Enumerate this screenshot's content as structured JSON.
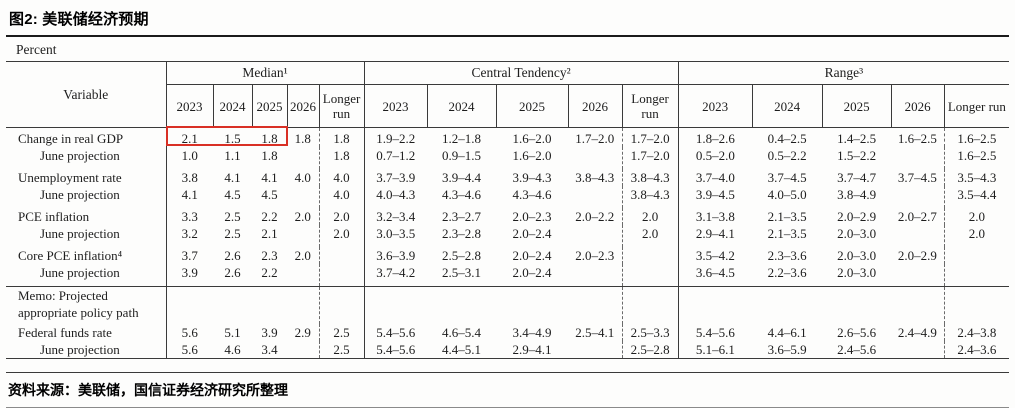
{
  "page": {
    "title": "图2: 美联储经济预期",
    "unit_label": "Percent",
    "source": "资料来源：美联储，国信证券经济研究所整理",
    "highlight_color": "#d93025"
  },
  "table": {
    "variable_header": "Variable",
    "groups": [
      {
        "label": "Median¹",
        "years": [
          "2023",
          "2024",
          "2025",
          "2026",
          "Longer run"
        ]
      },
      {
        "label": "Central Tendency²",
        "years": [
          "2023",
          "2024",
          "2025",
          "2026",
          "Longer run"
        ]
      },
      {
        "label": "Range³",
        "years": [
          "2023",
          "2024",
          "2025",
          "2026",
          "Longer run"
        ]
      }
    ],
    "rows": [
      {
        "type": "data",
        "label": "Change in real GDP",
        "indent": false,
        "highlight": true,
        "median": [
          "2.1",
          "1.5",
          "1.8",
          "1.8",
          "1.8"
        ],
        "central_tendency": [
          "1.9–2.2",
          "1.2–1.8",
          "1.6–2.0",
          "1.7–2.0",
          "1.7–2.0"
        ],
        "range": [
          "1.8–2.6",
          "0.4–2.5",
          "1.4–2.5",
          "1.6–2.5",
          "1.6–2.5"
        ]
      },
      {
        "type": "data",
        "label": "June projection",
        "indent": true,
        "spacer_after": true,
        "median": [
          "1.0",
          "1.1",
          "1.8",
          "",
          "1.8"
        ],
        "central_tendency": [
          "0.7–1.2",
          "0.9–1.5",
          "1.6–2.0",
          "",
          "1.7–2.0"
        ],
        "range": [
          "0.5–2.0",
          "0.5–2.2",
          "1.5–2.2",
          "",
          "1.6–2.5"
        ]
      },
      {
        "type": "data",
        "label": "Unemployment rate",
        "indent": false,
        "median": [
          "3.8",
          "4.1",
          "4.1",
          "4.0",
          "4.0"
        ],
        "central_tendency": [
          "3.7–3.9",
          "3.9–4.4",
          "3.9–4.3",
          "3.8–4.3",
          "3.8–4.3"
        ],
        "range": [
          "3.7–4.0",
          "3.7–4.5",
          "3.7–4.7",
          "3.7–4.5",
          "3.5–4.3"
        ]
      },
      {
        "type": "data",
        "label": "June projection",
        "indent": true,
        "spacer_after": true,
        "median": [
          "4.1",
          "4.5",
          "4.5",
          "",
          "4.0"
        ],
        "central_tendency": [
          "4.0–4.3",
          "4.3–4.6",
          "4.3–4.6",
          "",
          "3.8–4.3"
        ],
        "range": [
          "3.9–4.5",
          "4.0–5.0",
          "3.8–4.9",
          "",
          "3.5–4.4"
        ]
      },
      {
        "type": "data",
        "label": "PCE inflation",
        "indent": false,
        "median": [
          "3.3",
          "2.5",
          "2.2",
          "2.0",
          "2.0"
        ],
        "central_tendency": [
          "3.2–3.4",
          "2.3–2.7",
          "2.0–2.3",
          "2.0–2.2",
          "2.0"
        ],
        "range": [
          "3.1–3.8",
          "2.1–3.5",
          "2.0–2.9",
          "2.0–2.7",
          "2.0"
        ]
      },
      {
        "type": "data",
        "label": "June projection",
        "indent": true,
        "spacer_after": true,
        "median": [
          "3.2",
          "2.5",
          "2.1",
          "",
          "2.0"
        ],
        "central_tendency": [
          "3.0–3.5",
          "2.3–2.8",
          "2.0–2.4",
          "",
          "2.0"
        ],
        "range": [
          "2.9–4.1",
          "2.1–3.5",
          "2.0–3.0",
          "",
          "2.0"
        ]
      },
      {
        "type": "data",
        "label": "Core PCE inflation⁴",
        "indent": false,
        "median": [
          "3.7",
          "2.6",
          "2.3",
          "2.0",
          ""
        ],
        "central_tendency": [
          "3.6–3.9",
          "2.5–2.8",
          "2.0–2.4",
          "2.0–2.3",
          ""
        ],
        "range": [
          "3.5–4.2",
          "2.3–3.6",
          "2.0–3.0",
          "2.0–2.9",
          ""
        ]
      },
      {
        "type": "data",
        "label": "June projection",
        "indent": true,
        "spacer_after": true,
        "median": [
          "3.9",
          "2.6",
          "2.2",
          "",
          ""
        ],
        "central_tendency": [
          "3.7–4.2",
          "2.5–3.1",
          "2.0–2.4",
          "",
          ""
        ],
        "range": [
          "3.6–4.5",
          "2.2–3.6",
          "2.0–3.0",
          "",
          ""
        ]
      },
      {
        "type": "memo",
        "label_lines": [
          "Memo: Projected",
          "appropriate policy path"
        ],
        "rule_above": true
      },
      {
        "type": "data",
        "label": "Federal funds rate",
        "indent": false,
        "median": [
          "5.6",
          "5.1",
          "3.9",
          "2.9",
          "2.5"
        ],
        "central_tendency": [
          "5.4–5.6",
          "4.6–5.4",
          "3.4–4.9",
          "2.5–4.1",
          "2.5–3.3"
        ],
        "range": [
          "5.4–5.6",
          "4.4–6.1",
          "2.6–5.6",
          "2.4–4.9",
          "2.4–3.8"
        ]
      },
      {
        "type": "data",
        "label": "June projection",
        "indent": true,
        "median": [
          "5.6",
          "4.6",
          "3.4",
          "",
          "2.5"
        ],
        "central_tendency": [
          "5.4–5.6",
          "4.4–5.1",
          "2.9–4.1",
          "",
          "2.5–2.8"
        ],
        "range": [
          "5.1–6.1",
          "3.6–5.9",
          "2.4–5.6",
          "",
          "2.4–3.6"
        ]
      }
    ]
  }
}
